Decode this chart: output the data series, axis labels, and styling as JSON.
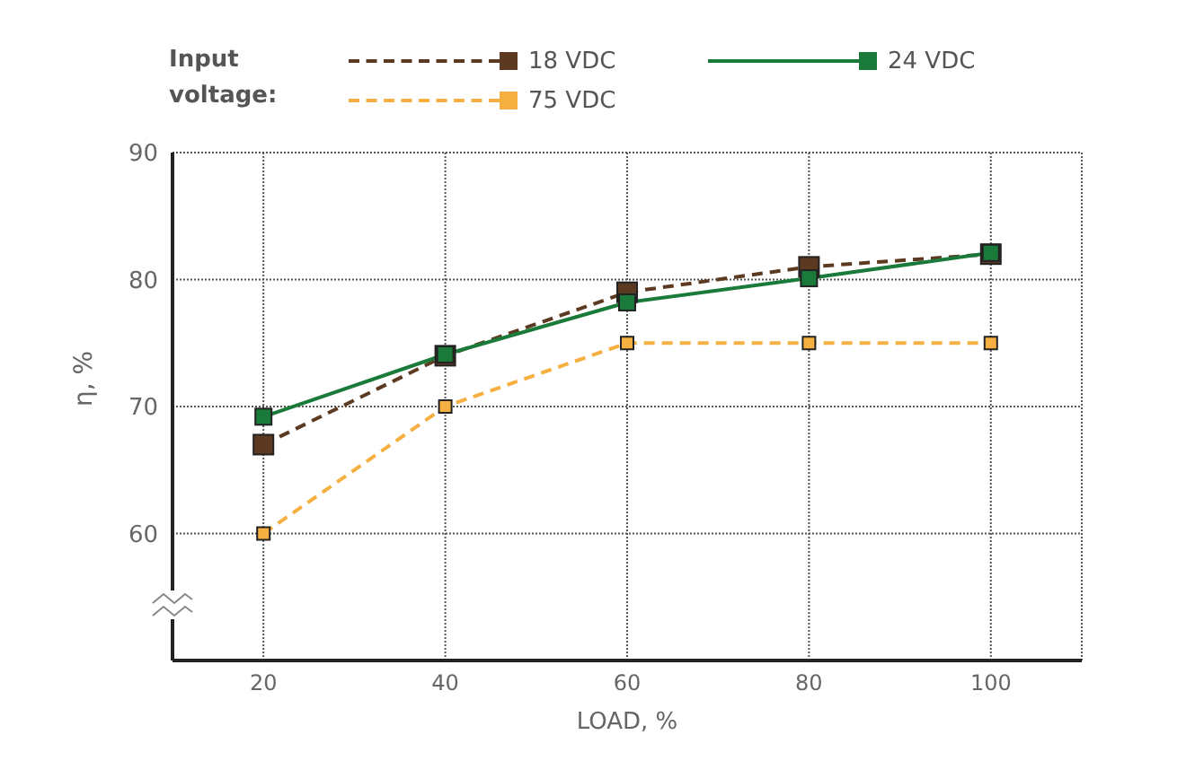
{
  "chart_data": {
    "type": "line",
    "xlabel": "LOAD, %",
    "ylabel": "η, %",
    "legend_title": "Input voltage:",
    "x": [
      20,
      40,
      60,
      80,
      100
    ],
    "series": [
      {
        "name": "18 VDC",
        "color": "#5c3a21",
        "line_style": "dashed",
        "values": [
          67,
          74,
          79,
          81,
          82
        ]
      },
      {
        "name": "24 VDC",
        "color": "#1a7a3a",
        "line_style": "solid",
        "values": [
          69.2,
          74.1,
          78.2,
          80.1,
          82.1
        ]
      },
      {
        "name": "75 VDC",
        "color": "#f5b041",
        "line_style": "dashed",
        "values": [
          60,
          70,
          75,
          75,
          75
        ]
      }
    ],
    "xlim": [
      10,
      110
    ],
    "xticks": [
      20,
      40,
      60,
      80,
      100
    ],
    "ylim": [
      50,
      90
    ],
    "yticks": [
      60,
      70,
      80,
      90
    ],
    "grid": true,
    "legend": "top",
    "marker": "square"
  }
}
